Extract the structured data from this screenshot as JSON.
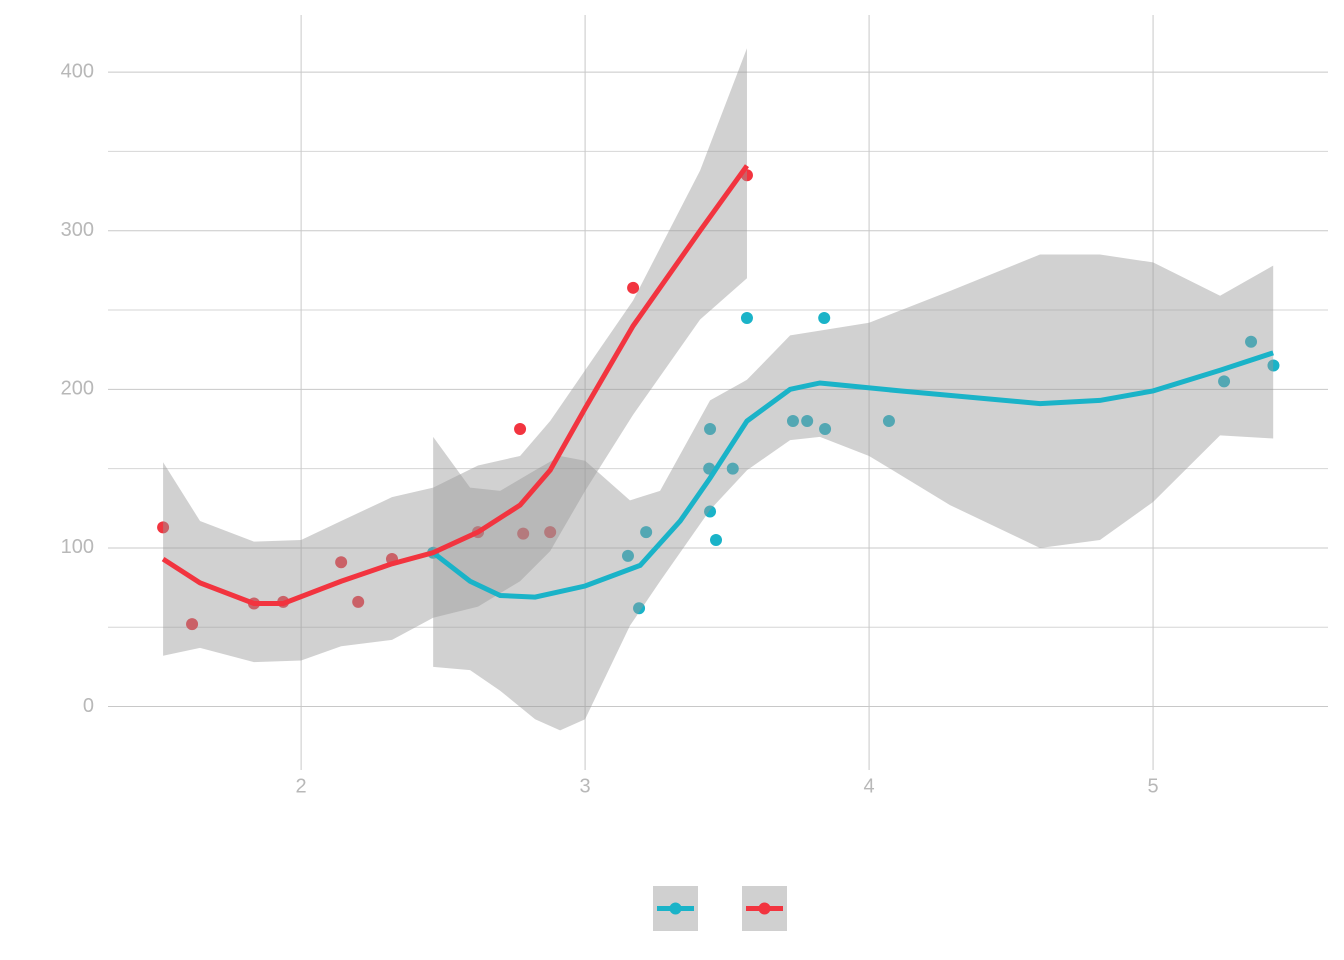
{
  "chart_data": {
    "type": "scatter",
    "xlim": [
      1.32,
      5.616
    ],
    "ylim": [
      -40,
      436
    ],
    "xticks": [
      2,
      3,
      4,
      5
    ],
    "yticks": [
      0,
      100,
      200,
      300,
      400
    ],
    "y_minor_grid": [
      50,
      150,
      250,
      350
    ],
    "grid": true,
    "legend": "bottom",
    "series": [
      {
        "color": "#1ab3c8",
        "x": [
          2.465,
          3.151,
          3.19,
          3.215,
          3.44,
          3.437,
          3.44,
          3.461,
          3.52,
          3.57,
          3.732,
          3.782,
          3.842,
          3.845,
          4.07,
          5.25,
          5.345,
          5.424
        ],
        "values": [
          97,
          95,
          62,
          110,
          175,
          150,
          123,
          105,
          150,
          245,
          180,
          180,
          245,
          175,
          180,
          205,
          230,
          215
        ],
        "smooth_x": [
          2.465,
          2.595,
          2.701,
          2.824,
          3.0,
          3.194,
          3.335,
          3.44,
          3.57,
          3.722,
          3.827,
          4.109,
          4.602,
          4.813,
          5.0,
          5.236,
          5.423
        ],
        "smooth": [
          97,
          79,
          70,
          69,
          76,
          89,
          117,
          144,
          180,
          200,
          204,
          199,
          191,
          193,
          199,
          212,
          223
        ],
        "band_x": [
          2.465,
          2.595,
          2.701,
          2.824,
          2.912,
          3.0,
          3.158,
          3.264,
          3.44,
          3.57,
          3.722,
          3.827,
          4.0,
          4.285,
          4.602,
          4.813,
          5.0,
          5.236,
          5.423
        ],
        "band_upper": [
          170,
          138,
          136,
          149,
          158,
          155,
          130,
          136,
          193,
          206,
          234,
          237,
          242,
          262,
          285,
          285,
          280,
          259,
          278
        ],
        "band_lower": [
          25,
          23,
          10,
          -8,
          -15,
          -8,
          51,
          79,
          124,
          149,
          168,
          170,
          158,
          127,
          100,
          105,
          129,
          171,
          169
        ]
      },
      {
        "color": "#f2343f",
        "x": [
          1.514,
          1.616,
          1.834,
          1.937,
          2.141,
          2.201,
          2.32,
          2.623,
          2.771,
          2.782,
          2.877,
          3.169,
          3.57
        ],
        "values": [
          113,
          52,
          65,
          66,
          91,
          66,
          93,
          110,
          175,
          109,
          110,
          264,
          335
        ],
        "smooth_x": [
          1.514,
          1.644,
          1.834,
          1.937,
          2.141,
          2.32,
          2.465,
          2.623,
          2.771,
          2.877,
          3.0,
          3.169,
          3.405,
          3.57
        ],
        "smooth": [
          93,
          78,
          65,
          65,
          79,
          90,
          97,
          110,
          127,
          149,
          188,
          240,
          300,
          341
        ],
        "band_x": [
          1.514,
          1.644,
          1.834,
          2.0,
          2.141,
          2.32,
          2.465,
          2.623,
          2.771,
          2.877,
          3.0,
          3.169,
          3.405,
          3.57
        ],
        "band_upper": [
          154,
          117,
          104,
          105,
          117,
          132,
          138,
          152,
          158,
          180,
          212,
          256,
          338,
          415
        ],
        "band_lower": [
          32,
          37,
          28,
          29,
          38,
          42,
          56,
          63,
          79,
          98,
          136,
          184,
          244,
          270
        ]
      }
    ]
  }
}
